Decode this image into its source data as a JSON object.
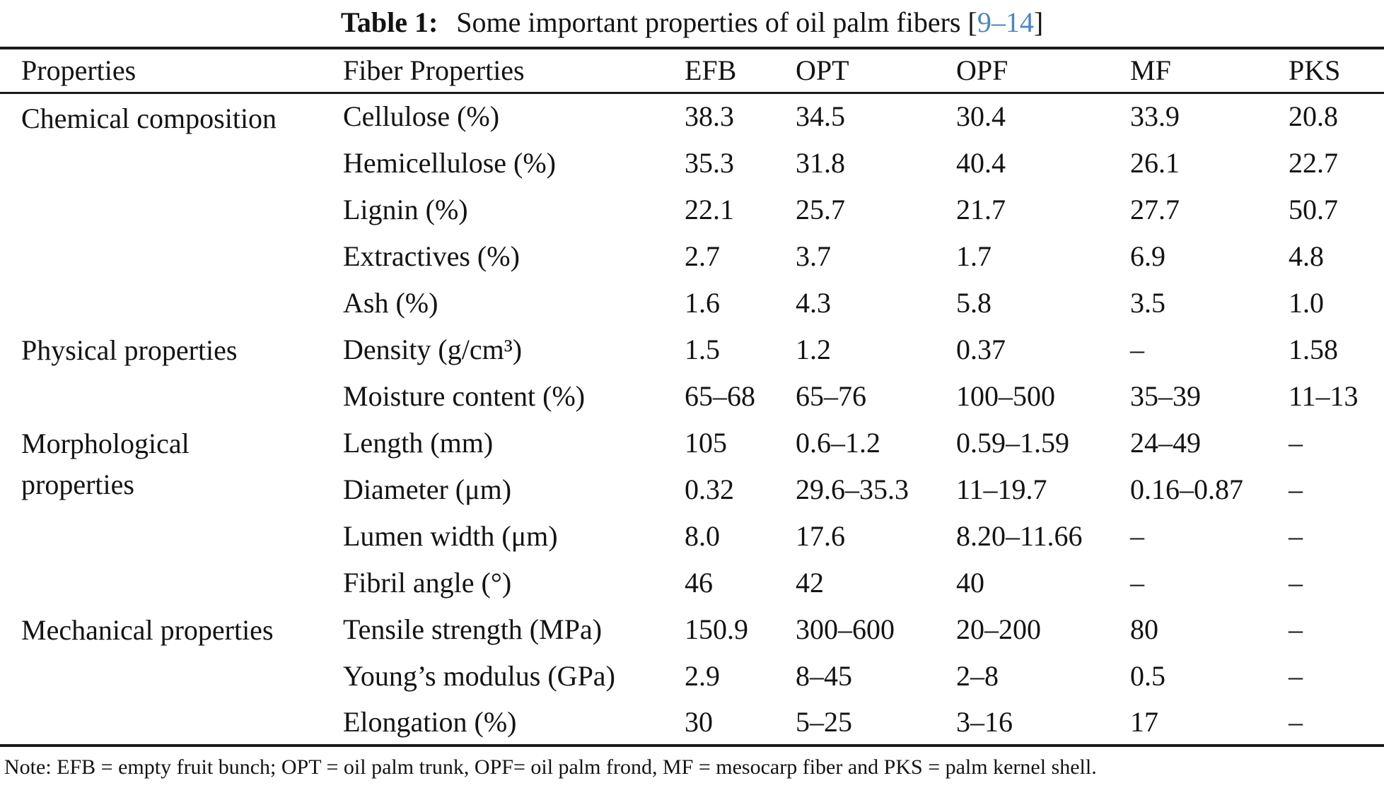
{
  "title": {
    "label": "Table 1:",
    "text": "Some important properties of oil palm fibers",
    "ref_open": "[",
    "ref": "9–14",
    "ref_close": "]"
  },
  "colors": {
    "citation_blue": "#4a85c4",
    "rule_color": "#1b1b1b",
    "text_color": "#131313"
  },
  "table": {
    "headers": [
      "Properties",
      "Fiber Properties",
      "EFB",
      "OPT",
      "OPF",
      "MF",
      "PKS"
    ],
    "groups": [
      {
        "label": "Chemical composition",
        "rows": [
          {
            "property": "Cellulose (%)",
            "values": [
              "38.3",
              "34.5",
              "30.4",
              "33.9",
              "20.8"
            ]
          },
          {
            "property": "Hemicellulose (%)",
            "values": [
              "35.3",
              "31.8",
              "40.4",
              "26.1",
              "22.7"
            ]
          },
          {
            "property": "Lignin (%)",
            "values": [
              "22.1",
              "25.7",
              "21.7",
              "27.7",
              "50.7"
            ]
          },
          {
            "property": "Extractives (%)",
            "values": [
              "2.7",
              "3.7",
              "1.7",
              "6.9",
              "4.8"
            ]
          },
          {
            "property": "Ash (%)",
            "values": [
              "1.6",
              "4.3",
              "5.8",
              "3.5",
              "1.0"
            ]
          }
        ]
      },
      {
        "label": "Physical properties",
        "rows": [
          {
            "property": "Density (g/cm³)",
            "values": [
              "1.5",
              "1.2",
              "0.37",
              "–",
              "1.58"
            ]
          },
          {
            "property": "Moisture content (%)",
            "values": [
              "65–68",
              "65–76",
              "100–500",
              "35–39",
              "11–13"
            ]
          }
        ]
      },
      {
        "label": "Morphological\nproperties",
        "rows": [
          {
            "property": "Length (mm)",
            "values": [
              "105",
              "0.6–1.2",
              "0.59–1.59",
              "24–49",
              "–"
            ]
          },
          {
            "property": "Diameter (μm)",
            "values": [
              "0.32",
              "29.6–35.3",
              "11–19.7",
              "0.16–0.87",
              "–"
            ]
          },
          {
            "property": "Lumen width (μm)",
            "values": [
              "8.0",
              "17.6",
              "8.20–11.66",
              "–",
              "–"
            ]
          },
          {
            "property": "Fibril angle (°)",
            "values": [
              "46",
              "42",
              "40",
              "–",
              "–"
            ]
          }
        ]
      },
      {
        "label": "Mechanical properties",
        "rows": [
          {
            "property": "Tensile strength (MPa)",
            "values": [
              "150.9",
              "300–600",
              "20–200",
              "80",
              "–"
            ]
          },
          {
            "property": "Young’s modulus (GPa)",
            "values": [
              "2.9",
              "8–45",
              "2–8",
              "0.5",
              "–"
            ]
          },
          {
            "property": "Elongation (%)",
            "values": [
              "30",
              "5–25",
              "3–16",
              "17",
              "–"
            ]
          }
        ]
      }
    ],
    "note": "Note: EFB = empty fruit bunch; OPT = oil palm trunk, OPF= oil palm frond, MF = mesocarp fiber and PKS = palm kernel shell."
  }
}
